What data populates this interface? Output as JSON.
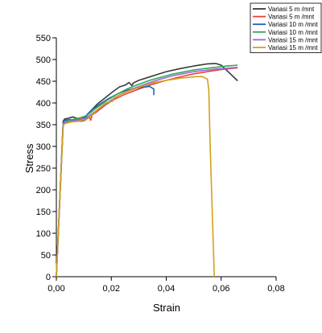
{
  "chart_data": {
    "type": "line",
    "xlabel": "Strain",
    "ylabel": "Stress",
    "xlim": [
      0,
      0.08
    ],
    "ylim": [
      0,
      550
    ],
    "xticks": [
      0,
      0.02,
      0.04,
      0.06,
      0.08
    ],
    "xtick_labels": [
      "0,00",
      "0,02",
      "0,04",
      "0,06",
      "0,08"
    ],
    "yticks": [
      0,
      50,
      100,
      150,
      200,
      250,
      300,
      350,
      400,
      450,
      500,
      550
    ],
    "ytick_labels": [
      "0",
      "50",
      "100",
      "150",
      "200",
      "250",
      "300",
      "350",
      "400",
      "450",
      "500",
      "550"
    ],
    "legend_position": "top-right",
    "series": [
      {
        "name": "Variasi 5 m /mnt",
        "color": "#3a3a3a",
        "x": [
          0,
          0.0025,
          0.003,
          0.0045,
          0.006,
          0.0075,
          0.009,
          0.01,
          0.011,
          0.012,
          0.013,
          0.015,
          0.017,
          0.019,
          0.021,
          0.023,
          0.025,
          0.0265,
          0.0275,
          0.028,
          0.03,
          0.033,
          0.036,
          0.04,
          0.045,
          0.05,
          0.055,
          0.058,
          0.06,
          0.0625,
          0.066
        ],
        "y": [
          0,
          358,
          363,
          365,
          368,
          364,
          366,
          367,
          370,
          378,
          385,
          398,
          408,
          418,
          428,
          437,
          441,
          447,
          440,
          446,
          452,
          458,
          464,
          472,
          479,
          485,
          490,
          491,
          487,
          472,
          451
        ]
      },
      {
        "name": "Variasi 5 m /mnt",
        "color": "#e8413e",
        "x": [
          0,
          0.0025,
          0.003,
          0.005,
          0.007,
          0.009,
          0.011,
          0.012,
          0.0125,
          0.013,
          0.015,
          0.018,
          0.021,
          0.025,
          0.03,
          0.035,
          0.04,
          0.045,
          0.05,
          0.055,
          0.06,
          0.066
        ],
        "y": [
          0,
          352,
          356,
          358,
          362,
          363,
          364,
          368,
          360,
          372,
          381,
          396,
          408,
          420,
          432,
          443,
          452,
          460,
          467,
          472,
          477,
          481
        ]
      },
      {
        "name": "Variasi 10 m /mnt",
        "color": "#1f5fbf",
        "x": [
          0,
          0.0025,
          0.003,
          0.005,
          0.007,
          0.009,
          0.0105,
          0.011,
          0.013,
          0.016,
          0.019,
          0.022,
          0.025,
          0.028,
          0.031,
          0.034,
          0.0355,
          0.0355
        ],
        "y": [
          0,
          356,
          360,
          362,
          359,
          358,
          360,
          372,
          385,
          398,
          410,
          420,
          428,
          433,
          436,
          438,
          432,
          418
        ]
      },
      {
        "name": "Variasi 10 m /mnt",
        "color": "#2ea85a",
        "x": [
          0,
          0.0025,
          0.003,
          0.005,
          0.008,
          0.011,
          0.014,
          0.018,
          0.022,
          0.026,
          0.03,
          0.034,
          0.038,
          0.042,
          0.046,
          0.05,
          0.054,
          0.058,
          0.062,
          0.066
        ],
        "y": [
          0,
          352,
          356,
          361,
          364,
          371,
          386,
          404,
          420,
          433,
          443,
          452,
          459,
          466,
          471,
          476,
          479,
          482,
          485,
          487
        ]
      },
      {
        "name": "Variasi 15 m /mnt",
        "color": "#9a6ad6",
        "x": [
          0,
          0.0025,
          0.003,
          0.005,
          0.008,
          0.011,
          0.014,
          0.018,
          0.022,
          0.026,
          0.03,
          0.034,
          0.038,
          0.042,
          0.046,
          0.05,
          0.054,
          0.058,
          0.062,
          0.066
        ],
        "y": [
          0,
          351,
          355,
          358,
          360,
          366,
          380,
          398,
          415,
          428,
          438,
          447,
          455,
          462,
          467,
          472,
          475,
          478,
          480,
          482
        ]
      },
      {
        "name": "Variasi 15 m /mnt",
        "color": "#d4a017",
        "x": [
          0,
          0.0025,
          0.003,
          0.005,
          0.008,
          0.011,
          0.013,
          0.015,
          0.018,
          0.0205,
          0.021,
          0.025,
          0.03,
          0.035,
          0.04,
          0.045,
          0.05,
          0.053,
          0.055,
          0.0555,
          0.056,
          0.0575
        ],
        "y": [
          0,
          348,
          352,
          356,
          358,
          362,
          372,
          385,
          400,
          404,
          412,
          424,
          436,
          446,
          452,
          457,
          460,
          461,
          455,
          430,
          300,
          0
        ]
      }
    ]
  }
}
